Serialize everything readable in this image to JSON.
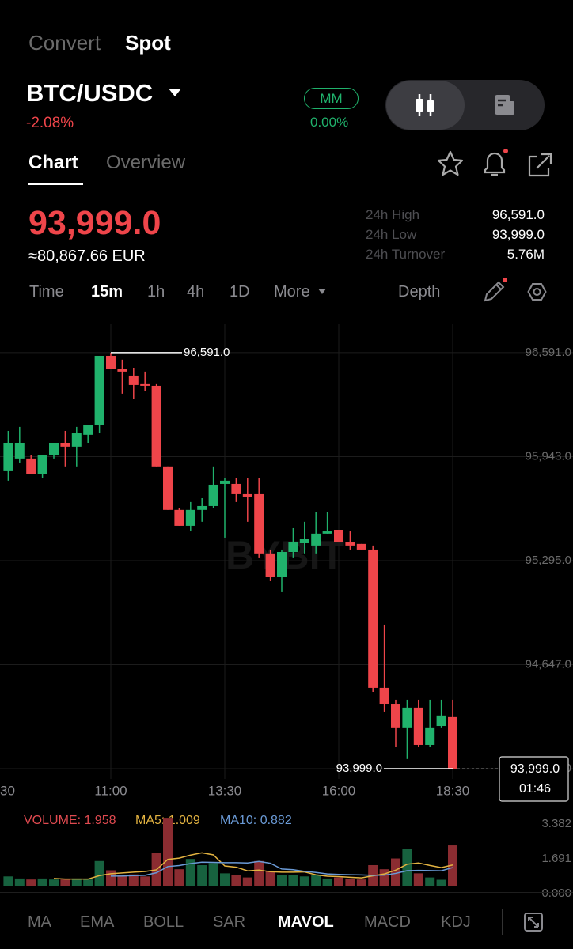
{
  "header": {
    "tabs": [
      "Convert",
      "Spot"
    ],
    "pair": "BTC/USDC",
    "change": "-2.08%",
    "mm": "MM",
    "mm_value": "0.00%"
  },
  "subtabs": [
    "Chart",
    "Overview"
  ],
  "price": {
    "last": "93,999.0",
    "fiat": "≈80,867.66 EUR"
  },
  "stats": [
    {
      "label": "24h High",
      "value": "96,591.0"
    },
    {
      "label": "24h Low",
      "value": "93,999.0"
    },
    {
      "label": "24h Turnover",
      "value": "5.76M"
    }
  ],
  "intervals": [
    "Time",
    "15m",
    "1h",
    "4h",
    "1D",
    "More"
  ],
  "depth": "Depth",
  "indicators": [
    "MA",
    "EMA",
    "BOLL",
    "SAR",
    "MAVOL",
    "MACD",
    "KDJ"
  ],
  "chart_data": [
    {
      "type": "candlestick",
      "watermark": "BYBIT",
      "categories": [
        null,
        null,
        null,
        null,
        null,
        null,
        null,
        null,
        null,
        "11:00",
        null,
        null,
        null,
        null,
        null,
        null,
        null,
        null,
        null,
        "13:30",
        null,
        null,
        null,
        null,
        null,
        null,
        null,
        null,
        null,
        "16:00",
        null,
        null,
        null,
        null,
        null,
        null,
        null,
        null,
        null,
        "18:30"
      ],
      "x_edge_label": "30",
      "open": [
        95857,
        95931,
        95931,
        95832,
        95955,
        96029,
        96005,
        96079,
        96138,
        96571,
        96488,
        96448,
        96399,
        96384,
        95882,
        95611,
        95512,
        95611,
        95635,
        95773,
        95773,
        95709,
        95709,
        95340,
        95192,
        95349,
        95404,
        95389,
        95463,
        95487,
        95413,
        95399,
        95364,
        94502,
        94403,
        94256,
        94379,
        94147,
        94265,
        94320
      ],
      "high": [
        96103,
        96128,
        95955,
        95955,
        96029,
        96103,
        96128,
        96138,
        96571,
        96591,
        96547,
        96497,
        96473,
        96399,
        95882,
        95625,
        95660,
        95684,
        95882,
        95808,
        95808,
        95808,
        95808,
        95364,
        95364,
        95497,
        95537,
        95596,
        95596,
        95487,
        95477,
        95399,
        95389,
        94896,
        94428,
        94428,
        94428,
        94428,
        94428,
        94428
      ],
      "low": [
        95793,
        95906,
        95832,
        95808,
        95931,
        95882,
        95882,
        96029,
        96088,
        96488,
        96335,
        96300,
        96350,
        95882,
        95611,
        95512,
        95477,
        95537,
        95625,
        95438,
        95660,
        95537,
        95315,
        95167,
        95103,
        95315,
        95340,
        95340,
        95463,
        95413,
        95364,
        95364,
        94477,
        94354,
        94132,
        94059,
        94132,
        94132,
        94256,
        93999
      ],
      "close": [
        96029,
        96029,
        95832,
        95955,
        96029,
        96005,
        96088,
        96138,
        96571,
        96488,
        96473,
        96389,
        96384,
        95882,
        95611,
        95512,
        95611,
        95635,
        95768,
        95793,
        95709,
        95694,
        95340,
        95192,
        95349,
        95413,
        95428,
        95463,
        95477,
        95413,
        95389,
        95364,
        94502,
        94403,
        94256,
        94379,
        94147,
        94256,
        94330,
        93999
      ],
      "up_color": "#20b26c",
      "down_color": "#ef454a",
      "ylim": [
        93935,
        96768
      ],
      "yticks": [
        {
          "value": 96591,
          "label": "96,591.0"
        },
        {
          "value": 95943,
          "label": "95,943.0"
        },
        {
          "value": 95295,
          "label": "95,295.0"
        },
        {
          "value": 94647,
          "label": "94,647.0"
        },
        {
          "value": 93999,
          "label": "93,999.0"
        }
      ],
      "grid": true,
      "high_label": "96,591.0",
      "low_label": "93,999.0",
      "last_price_label": "93,999.0",
      "countdown": "01:46"
    },
    {
      "type": "bar",
      "values": [
        0.45,
        0.35,
        0.3,
        0.35,
        0.3,
        0.3,
        0.35,
        0.3,
        1.2,
        0.75,
        0.5,
        0.55,
        0.45,
        1.6,
        3.3,
        0.8,
        1.3,
        1.0,
        1.1,
        0.6,
        0.5,
        0.4,
        1.2,
        0.7,
        0.5,
        0.5,
        0.45,
        0.5,
        0.35,
        0.4,
        0.35,
        0.3,
        1.0,
        0.8,
        1.325,
        1.8,
        0.6,
        0.4,
        0.287,
        1.958
      ],
      "up_color": "#17623f",
      "down_color": "#8b2c31",
      "lines": [
        {
          "color": "#e3b341",
          "values": [
            null,
            null,
            null,
            null,
            0.35,
            0.32,
            0.32,
            0.32,
            0.49,
            0.58,
            0.62,
            0.66,
            0.69,
            0.77,
            1.28,
            1.34,
            1.49,
            1.6,
            1.5,
            0.96,
            0.9,
            0.72,
            0.76,
            0.68,
            0.66,
            0.66,
            0.67,
            0.53,
            0.46,
            0.44,
            0.41,
            0.38,
            0.48,
            0.57,
            0.755,
            1.045,
            1.105,
            0.985,
            0.882,
            1.009
          ]
        },
        {
          "color": "#6a9ad6",
          "values": [
            null,
            null,
            null,
            null,
            null,
            null,
            null,
            null,
            null,
            0.465,
            0.47,
            0.49,
            0.505,
            0.63,
            0.93,
            0.98,
            1.075,
            1.145,
            1.135,
            1.12,
            1.12,
            1.105,
            1.18,
            1.09,
            0.81,
            0.78,
            0.695,
            0.645,
            0.57,
            0.55,
            0.535,
            0.525,
            0.505,
            0.515,
            0.598,
            0.728,
            0.743,
            0.733,
            0.726,
            0.882
          ]
        }
      ],
      "legend": [
        {
          "text": "VOLUME: 1.958",
          "color": "#e04a50"
        },
        {
          "text": "MA5: 1.009",
          "color": "#e3b341"
        },
        {
          "text": "MA10: 0.882",
          "color": "#6a9ad6"
        }
      ],
      "ylim": [
        0,
        3.382
      ],
      "yticks": [
        {
          "value": 3.382,
          "label": "3.382"
        },
        {
          "value": 1.691,
          "label": "1.691"
        },
        {
          "value": 0,
          "label": "0.000"
        }
      ]
    }
  ]
}
